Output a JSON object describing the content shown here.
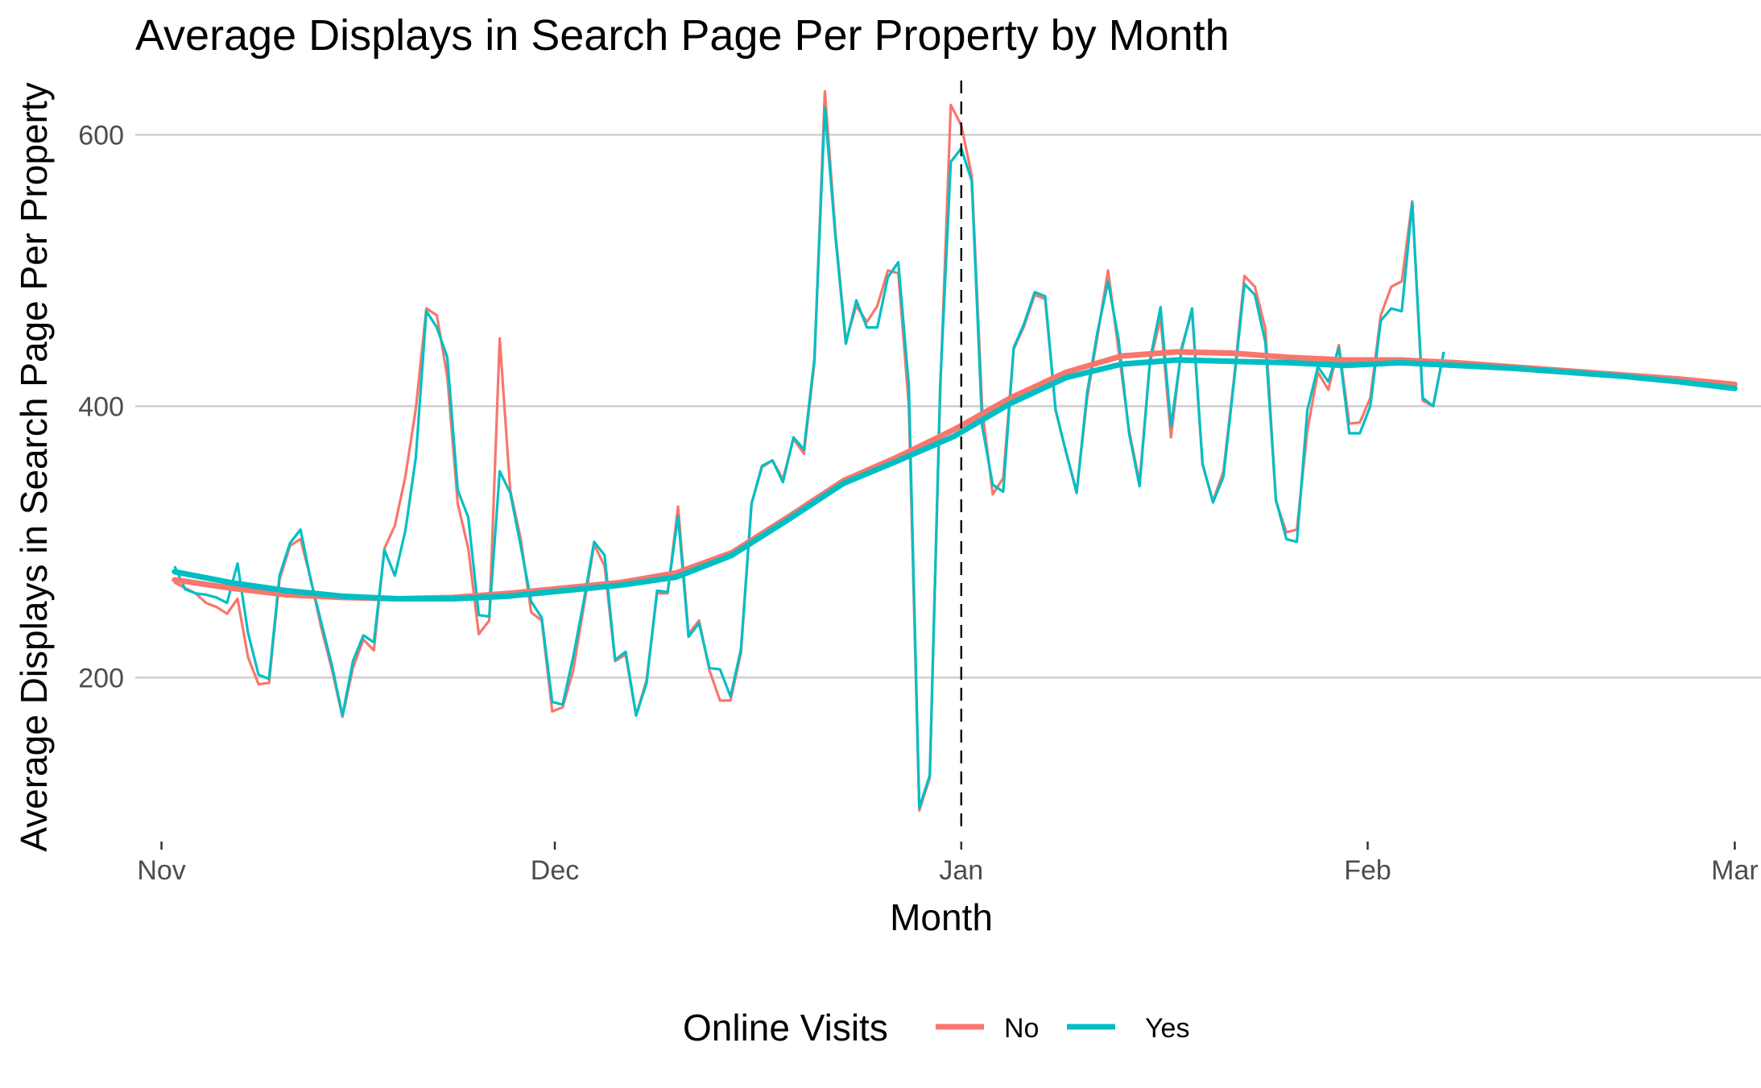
{
  "chart_data": {
    "type": "line",
    "title": "Average Displays in Search Page Per Property by Month",
    "xlabel": "Month",
    "ylabel": "Average Displays in Search Page Per Property",
    "x_ticks": [
      {
        "label": "Nov",
        "day": 0
      },
      {
        "label": "Dec",
        "day": 30
      },
      {
        "label": "Jan",
        "day": 61
      },
      {
        "label": "Feb",
        "day": 92
      },
      {
        "label": "Mar",
        "day": 120
      }
    ],
    "y_ticks": [
      200,
      400,
      600
    ],
    "xlim_day": [
      -2,
      122
    ],
    "ylim": [
      85,
      640
    ],
    "vline_day": 61,
    "grid": "horizontal major only",
    "legend": {
      "title": "Online Visits",
      "position": "bottom",
      "entries": [
        {
          "label": "No",
          "color": "#F8766D"
        },
        {
          "label": "Yes",
          "color": "#00BFC4"
        }
      ]
    },
    "series": [
      {
        "name": "No",
        "color": "#F8766D",
        "x_start_day": 1,
        "x_step_days": 0.8,
        "values": [
          270,
          266,
          262,
          255,
          252,
          247,
          258,
          215,
          195,
          196,
          272,
          297,
          302,
          272,
          236,
          206,
          171,
          207,
          228,
          220,
          295,
          312,
          348,
          398,
          472,
          467,
          422,
          328,
          295,
          232,
          242,
          450,
          338,
          302,
          248,
          242,
          175,
          178,
          205,
          252,
          298,
          282,
          212,
          217,
          172,
          198,
          262,
          262,
          326,
          232,
          242,
          205,
          183,
          183,
          218,
          328,
          355,
          360,
          346,
          376,
          365,
          432,
          632,
          528,
          448,
          474,
          462,
          474,
          500,
          498,
          400,
          102,
          126,
          412,
          622,
          607,
          570,
          398,
          335,
          347,
          442,
          459,
          482,
          479,
          397,
          366,
          337,
          406,
          452,
          500,
          441,
          382,
          344,
          432,
          465,
          377,
          443,
          470,
          357,
          330,
          352,
          420,
          496,
          488,
          457,
          330,
          307,
          309,
          382,
          425,
          412,
          445,
          387,
          388,
          406,
          467,
          488,
          492,
          551,
          404,
          400,
          440
        ],
        "trend": [
          272,
          266,
          261,
          259,
          258,
          259,
          262,
          266,
          270,
          277,
          292,
          318,
          345,
          363,
          383,
          406,
          425,
          437,
          440,
          439,
          436,
          434,
          434,
          432,
          429,
          426,
          423,
          420,
          416
        ]
      },
      {
        "name": "Yes",
        "color": "#00BFC4",
        "x_start_day": 1,
        "x_step_days": 0.8,
        "values": [
          282,
          265,
          262,
          261,
          259,
          255,
          284,
          233,
          202,
          199,
          275,
          299,
          309,
          271,
          240,
          209,
          172,
          212,
          231,
          226,
          294,
          275,
          308,
          362,
          470,
          458,
          436,
          338,
          318,
          246,
          245,
          352,
          336,
          297,
          256,
          244,
          182,
          180,
          215,
          256,
          300,
          290,
          213,
          219,
          172,
          196,
          264,
          263,
          319,
          230,
          240,
          207,
          206,
          186,
          221,
          328,
          356,
          360,
          344,
          377,
          368,
          435,
          620,
          525,
          446,
          478,
          458,
          458,
          495,
          506,
          415,
          104,
          128,
          416,
          580,
          590,
          566,
          385,
          342,
          337,
          443,
          461,
          484,
          481,
          397,
          366,
          336,
          410,
          455,
          492,
          449,
          380,
          341,
          434,
          473,
          385,
          441,
          472,
          358,
          329,
          348,
          418,
          490,
          482,
          447,
          331,
          302,
          300,
          397,
          429,
          418,
          443,
          380,
          380,
          400,
          463,
          472,
          470,
          550,
          406,
          400,
          440
        ],
        "trend": [
          278,
          270,
          264,
          260,
          258,
          258,
          260,
          264,
          268,
          274,
          290,
          316,
          343,
          360,
          378,
          402,
          421,
          431,
          434,
          433,
          432,
          430,
          432,
          430,
          428,
          425,
          422,
          418,
          413
        ]
      }
    ]
  }
}
